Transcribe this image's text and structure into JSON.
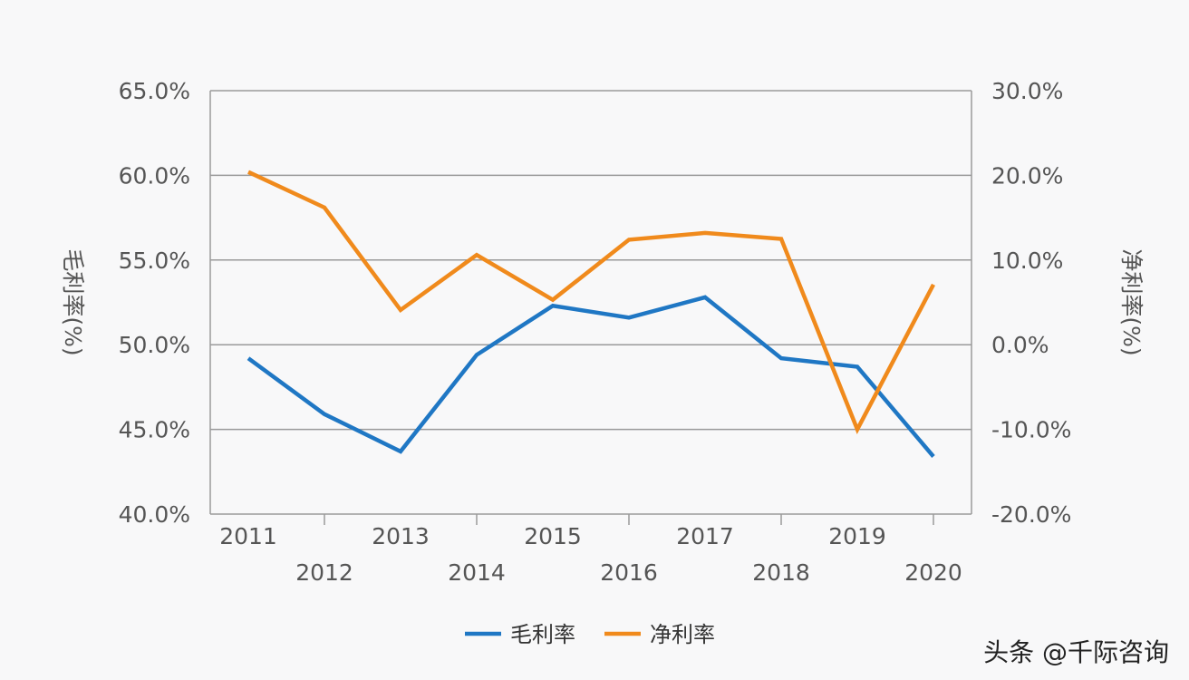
{
  "chart_data": {
    "type": "line",
    "categories": [
      "2011",
      "2012",
      "2013",
      "2014",
      "2015",
      "2016",
      "2017",
      "2018",
      "2019",
      "2020"
    ],
    "series": [
      {
        "name": "毛利率",
        "axis": "left",
        "color": "#1f77c4",
        "values": [
          49.2,
          45.9,
          43.7,
          49.4,
          52.3,
          51.6,
          52.8,
          49.2,
          48.7,
          43.4
        ]
      },
      {
        "name": "净利率",
        "axis": "right",
        "color": "#f08a1c",
        "values": [
          20.4,
          16.2,
          4.1,
          10.6,
          5.3,
          12.4,
          13.2,
          12.5,
          -10.0,
          7.1
        ]
      }
    ],
    "ylabel": "毛利率(%)",
    "y2label": "净利率(%)",
    "ylim": [
      40,
      65
    ],
    "y2lim": [
      -20,
      30
    ],
    "yticks": [
      "40.0%",
      "45.0%",
      "50.0%",
      "55.0%",
      "60.0%",
      "65.0%"
    ],
    "y2ticks": [
      "-20.0%",
      "-10.0%",
      "0.0%",
      "10.0%",
      "20.0%",
      "30.0%"
    ],
    "grid": true,
    "legend": "bottom"
  },
  "watermark": "头条 @千际咨询"
}
